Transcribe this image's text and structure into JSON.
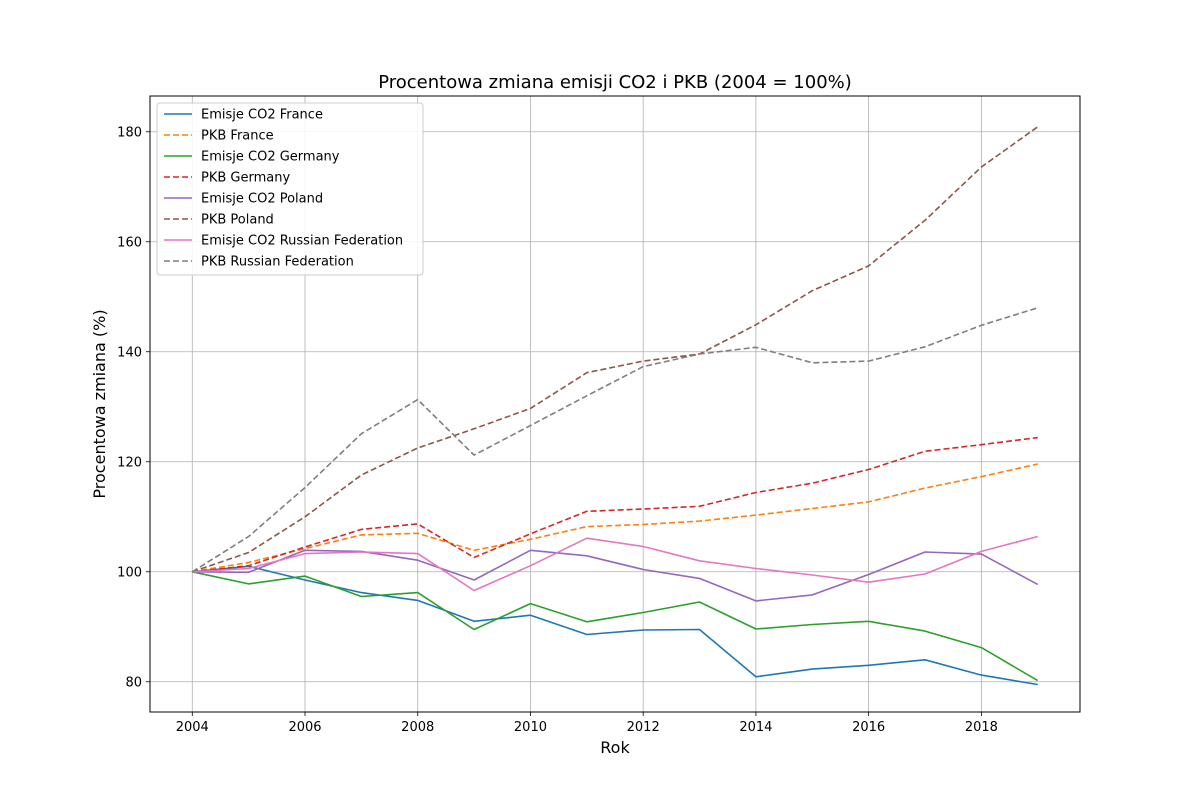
{
  "chart_data": {
    "type": "line",
    "title": "Procentowa zmiana emisji CO2 i PKB (2004 = 100%)",
    "xlabel": "Rok",
    "ylabel": "Procentowa zmiana (%)",
    "x": [
      2004,
      2005,
      2006,
      2007,
      2008,
      2009,
      2010,
      2011,
      2012,
      2013,
      2014,
      2015,
      2016,
      2017,
      2018,
      2019
    ],
    "xlim": [
      2003.25,
      2019.75
    ],
    "ylim": [
      74.5,
      186.5
    ],
    "xticks": [
      2004,
      2006,
      2008,
      2010,
      2012,
      2014,
      2016,
      2018
    ],
    "yticks": [
      80,
      100,
      120,
      140,
      160,
      180
    ],
    "grid": true,
    "legend_position": "top-left",
    "series": [
      {
        "name": "Emisje CO2 France",
        "color": "#1f77b4",
        "style": "solid",
        "values": [
          100,
          101.0,
          98.5,
          96.2,
          94.8,
          91.0,
          92.1,
          88.6,
          89.4,
          89.5,
          80.9,
          82.3,
          83.0,
          84.0,
          81.2,
          79.5
        ]
      },
      {
        "name": "PKB France",
        "color": "#ff7f0e",
        "style": "dashed",
        "values": [
          100,
          101.7,
          104.2,
          106.7,
          107.0,
          103.9,
          105.9,
          108.2,
          108.6,
          109.2,
          110.3,
          111.5,
          112.7,
          115.2,
          117.3,
          119.6
        ]
      },
      {
        "name": "Emisje CO2 Germany",
        "color": "#2ca02c",
        "style": "solid",
        "values": [
          100,
          97.8,
          99.2,
          95.5,
          96.2,
          89.5,
          94.2,
          90.9,
          92.6,
          94.5,
          89.6,
          90.4,
          91.0,
          89.2,
          86.2,
          80.2
        ]
      },
      {
        "name": "PKB Germany",
        "color": "#d62728",
        "style": "dashed",
        "values": [
          100,
          101.1,
          104.5,
          107.7,
          108.7,
          102.6,
          106.9,
          111.0,
          111.4,
          111.9,
          114.4,
          116.1,
          118.6,
          121.9,
          123.1,
          124.4
        ]
      },
      {
        "name": "Emisje CO2 Poland",
        "color": "#9467bd",
        "style": "solid",
        "values": [
          100,
          99.9,
          103.9,
          103.7,
          102.1,
          98.5,
          103.9,
          102.9,
          100.4,
          98.8,
          94.7,
          95.8,
          99.5,
          103.6,
          103.2,
          97.7
        ]
      },
      {
        "name": "PKB Poland",
        "color": "#8c564b",
        "style": "dashed",
        "values": [
          100,
          103.5,
          110.0,
          117.6,
          122.5,
          126.0,
          129.7,
          136.2,
          138.3,
          139.6,
          144.9,
          151.1,
          155.6,
          163.9,
          173.6,
          180.9
        ]
      },
      {
        "name": "Emisje CO2 Russian Federation",
        "color": "#e377c2",
        "style": "solid",
        "values": [
          100,
          100.6,
          103.3,
          103.6,
          103.3,
          96.6,
          101.1,
          106.1,
          104.6,
          102.0,
          100.6,
          99.4,
          98.1,
          99.6,
          103.7,
          106.4
        ]
      },
      {
        "name": "PKB Russian Federation",
        "color": "#7f7f7f",
        "style": "dashed",
        "values": [
          100,
          106.4,
          115.3,
          125.1,
          131.3,
          121.2,
          126.6,
          132.0,
          137.3,
          139.6,
          140.8,
          138.0,
          138.3,
          140.9,
          144.8,
          148.0
        ]
      }
    ]
  }
}
